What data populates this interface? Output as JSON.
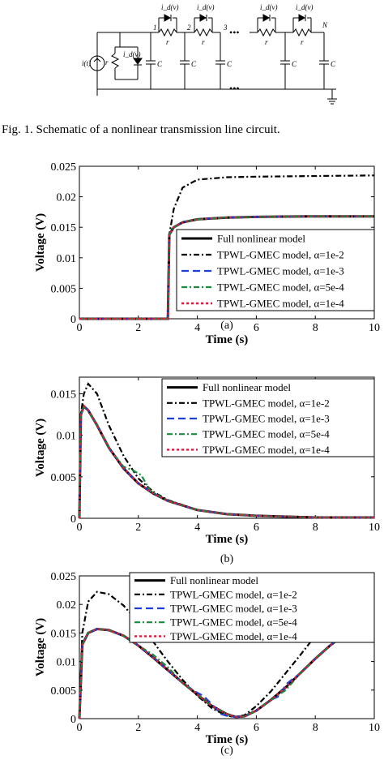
{
  "circuit": {
    "source_label": "i(t)",
    "diode_label": "i_d(v)",
    "resistor_label": "r",
    "capacitor_label": "C",
    "node_labels": [
      "1",
      "2",
      "3",
      "N"
    ],
    "dots": "•••"
  },
  "caption": "Fig. 1.   Schematic of a nonlinear transmission line circuit.",
  "legend_entries": [
    {
      "name": "Full nonlinear model",
      "color": "#000000",
      "dash": "solid"
    },
    {
      "name": "TPWL-GMEC model, α=1e-2",
      "color": "#000000",
      "dash": "dashdot"
    },
    {
      "name": "TPWL-GMEC model, α=1e-3",
      "color": "#1f3fd0",
      "dash": "dash"
    },
    {
      "name": "TPWL-GMEC model, α=5e-4",
      "color": "#1a8a3a",
      "dash": "dashdot"
    },
    {
      "name": "TPWL-GMEC model, α=1e-4",
      "color": "#d02040",
      "dash": "dot"
    }
  ],
  "chart_data": [
    {
      "type": "line",
      "label": "(a)",
      "xlabel": "Time (s)",
      "ylabel": "Voltage (V)",
      "xlim": [
        0,
        10
      ],
      "ylim": [
        0,
        0.025
      ],
      "xticks": [
        0,
        2,
        4,
        6,
        8,
        10
      ],
      "yticks": [
        0,
        0.005,
        0.01,
        0.015,
        0.02,
        0.025
      ],
      "ytick_labels": [
        "0",
        "0.005",
        "0.01",
        "0.015",
        "0.02",
        "0.025"
      ],
      "legend_position": "right",
      "series": [
        {
          "name": "Full nonlinear model",
          "x": [
            0,
            3.0,
            3.05,
            3.2,
            3.5,
            4,
            5,
            6,
            8,
            10
          ],
          "y": [
            0,
            0,
            0.0138,
            0.015,
            0.0158,
            0.0163,
            0.0166,
            0.0167,
            0.0168,
            0.0168
          ]
        },
        {
          "name": "TPWL-GMEC model, α=1e-2",
          "x": [
            0,
            3.0,
            3.05,
            3.2,
            3.5,
            4,
            5,
            6,
            8,
            10
          ],
          "y": [
            0,
            0,
            0.0138,
            0.018,
            0.0215,
            0.0228,
            0.0232,
            0.0233,
            0.0234,
            0.0235
          ]
        },
        {
          "name": "TPWL-GMEC model, α=1e-3",
          "x": [
            0,
            3.0,
            3.05,
            3.2,
            3.5,
            4,
            5,
            6,
            8,
            10
          ],
          "y": [
            0,
            0,
            0.0138,
            0.015,
            0.0158,
            0.0163,
            0.0166,
            0.0167,
            0.0168,
            0.0168
          ]
        },
        {
          "name": "TPWL-GMEC model, α=5e-4",
          "x": [
            0,
            3.0,
            3.05,
            3.2,
            3.5,
            4,
            5,
            6,
            8,
            10
          ],
          "y": [
            0,
            0,
            0.0138,
            0.015,
            0.0158,
            0.0163,
            0.0166,
            0.0167,
            0.0168,
            0.0168
          ]
        },
        {
          "name": "TPWL-GMEC model, α=1e-4",
          "x": [
            0,
            3.0,
            3.05,
            3.2,
            3.5,
            4,
            5,
            6,
            8,
            10
          ],
          "y": [
            0,
            0,
            0.0138,
            0.015,
            0.0158,
            0.0163,
            0.0166,
            0.0167,
            0.0168,
            0.0168
          ]
        }
      ]
    },
    {
      "type": "line",
      "label": "(b)",
      "xlabel": "Time (s)",
      "ylabel": "Voltage (V)",
      "xlim": [
        0,
        10
      ],
      "ylim": [
        0,
        0.017
      ],
      "xticks": [
        0,
        2,
        4,
        6,
        8,
        10
      ],
      "yticks": [
        0,
        0.005,
        0.01,
        0.015
      ],
      "ytick_labels": [
        "0",
        "0.005",
        "0.01",
        "0.015"
      ],
      "legend_position": "top-right",
      "series": [
        {
          "name": "Full nonlinear model",
          "x": [
            0,
            0.05,
            0.15,
            0.3,
            0.6,
            1.0,
            1.5,
            2.0,
            2.5,
            3,
            4,
            5,
            6,
            8,
            10
          ],
          "y": [
            0,
            0.0125,
            0.0135,
            0.013,
            0.0112,
            0.0085,
            0.006,
            0.0042,
            0.003,
            0.0021,
            0.001,
            0.0005,
            0.0003,
            0.0001,
            0.0001
          ]
        },
        {
          "name": "TPWL-GMEC model, α=1e-2",
          "x": [
            0,
            0.05,
            0.15,
            0.3,
            0.6,
            1.0,
            1.5,
            2.0,
            2.5,
            3,
            4,
            5,
            6,
            8,
            10
          ],
          "y": [
            0,
            0.0125,
            0.015,
            0.0162,
            0.015,
            0.0112,
            0.0075,
            0.0048,
            0.0032,
            0.0022,
            0.001,
            0.0005,
            0.0003,
            0.0001,
            0.0001
          ]
        },
        {
          "name": "TPWL-GMEC model, α=1e-3",
          "x": [
            0,
            0.05,
            0.15,
            0.3,
            0.6,
            1.0,
            1.5,
            2.0,
            2.5,
            3,
            4,
            5,
            6,
            8,
            10
          ],
          "y": [
            0,
            0.0125,
            0.0135,
            0.013,
            0.0112,
            0.0085,
            0.006,
            0.0042,
            0.003,
            0.0021,
            0.001,
            0.0005,
            0.0003,
            0.0001,
            0.0001
          ]
        },
        {
          "name": "TPWL-GMEC model, α=5e-4",
          "x": [
            0,
            0.05,
            0.15,
            0.3,
            0.6,
            1.0,
            1.5,
            1.8,
            2.1,
            2.4,
            3,
            4,
            5,
            6,
            8,
            10
          ],
          "y": [
            0,
            0.0125,
            0.0135,
            0.013,
            0.0112,
            0.0085,
            0.0062,
            0.0058,
            0.0052,
            0.0033,
            0.0021,
            0.001,
            0.0005,
            0.0003,
            0.0001,
            0.0001
          ]
        },
        {
          "name": "TPWL-GMEC model, α=1e-4",
          "x": [
            0,
            0.05,
            0.15,
            0.3,
            0.6,
            1.0,
            1.5,
            2.0,
            2.5,
            3,
            4,
            5,
            6,
            8,
            10
          ],
          "y": [
            0,
            0.0125,
            0.0135,
            0.013,
            0.0112,
            0.0085,
            0.006,
            0.0042,
            0.003,
            0.0021,
            0.001,
            0.0005,
            0.0003,
            0.0001,
            0.0001
          ]
        }
      ]
    },
    {
      "type": "line",
      "label": "(c)",
      "xlabel": "Time (s)",
      "ylabel": "Voltage (V)",
      "xlim": [
        0,
        10
      ],
      "ylim": [
        0,
        0.025
      ],
      "xticks": [
        0,
        2,
        4,
        6,
        8,
        10
      ],
      "yticks": [
        0,
        0.005,
        0.01,
        0.015,
        0.02,
        0.025
      ],
      "ytick_labels": [
        "0",
        "0.005",
        "0.01",
        "0.015",
        "0.02",
        "0.025"
      ],
      "legend_position": "top-center",
      "series": [
        {
          "name": "Full nonlinear model",
          "x": [
            0,
            0.1,
            0.3,
            0.6,
            1.0,
            1.5,
            2.0,
            2.5,
            3.0,
            3.5,
            4.0,
            4.5,
            5.0,
            5.3,
            5.6,
            6.0,
            6.5,
            7.0,
            7.5,
            8.0,
            8.5,
            9.0,
            9.5,
            10
          ],
          "y": [
            0,
            0.013,
            0.015,
            0.0157,
            0.0155,
            0.0145,
            0.0128,
            0.0107,
            0.0085,
            0.0063,
            0.0042,
            0.0022,
            0.0008,
            0.0003,
            0.0004,
            0.0014,
            0.0033,
            0.0055,
            0.008,
            0.0105,
            0.0128,
            0.0148,
            0.0162,
            0.0168
          ]
        },
        {
          "name": "TPWL-GMEC model, α=1e-2",
          "x": [
            0,
            0.1,
            0.3,
            0.6,
            1.0,
            1.5,
            2.0,
            2.5,
            3.0,
            3.5,
            4.0,
            4.5,
            5.0,
            5.3,
            5.6,
            6.0,
            6.5,
            7.0,
            7.5,
            8.0,
            8.5,
            9.0,
            9.5,
            10
          ],
          "y": [
            0,
            0.015,
            0.0205,
            0.0222,
            0.0218,
            0.0198,
            0.0168,
            0.0135,
            0.01,
            0.0068,
            0.004,
            0.0018,
            0.0005,
            0.0003,
            0.0006,
            0.0022,
            0.0048,
            0.008,
            0.0112,
            0.0145,
            0.0175,
            0.0202,
            0.0222,
            0.0235
          ]
        },
        {
          "name": "TPWL-GMEC model, α=1e-3",
          "x": [
            0,
            0.1,
            0.3,
            0.6,
            1.0,
            1.5,
            2.0,
            2.5,
            3.0,
            3.5,
            3.9,
            4.2,
            4.5,
            4.8,
            5.0,
            5.3,
            5.6,
            6.0,
            6.5,
            6.8,
            7.0,
            7.5,
            8.0,
            8.5,
            9.0,
            9.5,
            10
          ],
          "y": [
            0,
            0.013,
            0.015,
            0.0157,
            0.0155,
            0.0145,
            0.0128,
            0.0107,
            0.0085,
            0.0063,
            0.0048,
            0.004,
            0.0025,
            0.0008,
            0.0005,
            0.0003,
            0.0004,
            0.0014,
            0.0033,
            0.004,
            0.006,
            0.008,
            0.0105,
            0.0128,
            0.0148,
            0.0162,
            0.0168
          ]
        },
        {
          "name": "TPWL-GMEC model, α=5e-4",
          "x": [
            0,
            0.1,
            0.3,
            0.6,
            1.0,
            1.5,
            2.0,
            2.5,
            3.0,
            3.5,
            4.0,
            4.5,
            5.0,
            5.3,
            5.6,
            6.0,
            6.5,
            7.0,
            7.5,
            8.0,
            8.5,
            9.0,
            9.5,
            10
          ],
          "y": [
            0,
            0.013,
            0.015,
            0.0157,
            0.0155,
            0.0145,
            0.0128,
            0.0112,
            0.009,
            0.0063,
            0.0042,
            0.0022,
            0.0008,
            0.0003,
            0.0004,
            0.0014,
            0.0033,
            0.005,
            0.008,
            0.0105,
            0.0128,
            0.0148,
            0.0162,
            0.0168
          ]
        },
        {
          "name": "TPWL-GMEC model, α=1e-4",
          "x": [
            0,
            0.1,
            0.3,
            0.6,
            1.0,
            1.5,
            2.0,
            2.5,
            3.0,
            3.5,
            4.0,
            4.5,
            5.0,
            5.3,
            5.6,
            6.0,
            6.5,
            7.0,
            7.5,
            8.0,
            8.5,
            9.0,
            9.5,
            10
          ],
          "y": [
            0,
            0.013,
            0.015,
            0.0157,
            0.0155,
            0.0145,
            0.0128,
            0.0107,
            0.0085,
            0.0063,
            0.0042,
            0.0022,
            0.0008,
            0.0003,
            0.0004,
            0.0014,
            0.0033,
            0.0055,
            0.008,
            0.0105,
            0.0128,
            0.0148,
            0.0162,
            0.0168
          ]
        }
      ]
    }
  ]
}
